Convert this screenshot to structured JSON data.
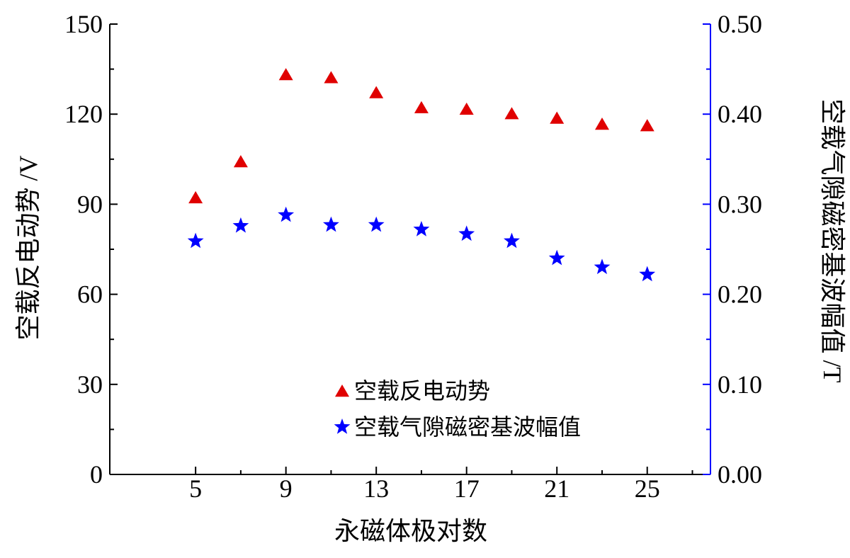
{
  "chart_data": {
    "type": "scatter",
    "xlabel": "永磁体极对数",
    "ylabel_left": "空载反电动势 /V",
    "ylabel_right": "空载气隙磁密基波幅值 /T",
    "x_ticks": [
      "5",
      "9",
      "13",
      "17",
      "21",
      "25"
    ],
    "y_left_ticks": [
      "0",
      "30",
      "60",
      "90",
      "120",
      "150"
    ],
    "y_right_ticks": [
      "0.00",
      "0.10",
      "0.20",
      "0.30",
      "0.40",
      "0.50"
    ],
    "xlim": [
      1.2,
      27.8
    ],
    "ylim_left": [
      0,
      150
    ],
    "ylim_right": [
      0,
      0.5
    ],
    "grid": false,
    "legend_position": "bottom-center",
    "colors": {
      "left_axis": "#000000",
      "right_axis": "#0000ff",
      "triangle": "#e00000",
      "star": "#0000ff"
    },
    "series": [
      {
        "name": "空载反电动势",
        "axis": "left",
        "marker": "triangle",
        "color": "#e00000",
        "x": [
          5,
          7,
          9,
          11,
          13,
          15,
          17,
          19,
          21,
          23,
          25
        ],
        "y": [
          92,
          104,
          133,
          132,
          127,
          122,
          121.5,
          120,
          118.5,
          116.5,
          116
        ]
      },
      {
        "name": "空载气隙磁密基波幅值",
        "axis": "right",
        "marker": "star",
        "color": "#0000ff",
        "x": [
          5,
          7,
          9,
          11,
          13,
          15,
          17,
          19,
          21,
          23,
          25
        ],
        "y": [
          0.259,
          0.276,
          0.288,
          0.277,
          0.277,
          0.272,
          0.267,
          0.259,
          0.24,
          0.23,
          0.222
        ]
      }
    ]
  }
}
